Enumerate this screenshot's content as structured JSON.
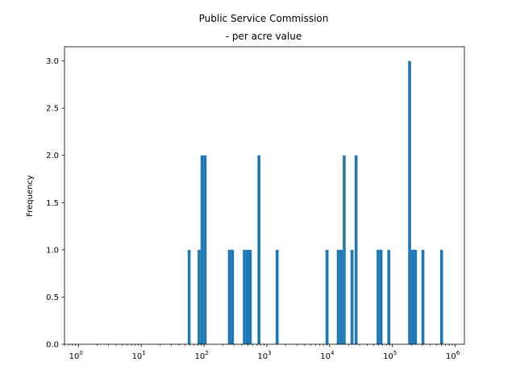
{
  "chart_data": {
    "type": "bar",
    "title_lines": [
      "Public Service Commission",
      "- per acre value"
    ],
    "xlabel": "",
    "ylabel": "Frequency",
    "x_scale": "log",
    "xlim": [
      0.6,
      1400000
    ],
    "ylim": [
      0,
      3.15
    ],
    "grid": false,
    "legend": "none",
    "bar_color": "#1f77b4",
    "y_ticks": [
      {
        "value": 0.0,
        "label": "0.0"
      },
      {
        "value": 0.5,
        "label": "0.5"
      },
      {
        "value": 1.0,
        "label": "1.0"
      },
      {
        "value": 1.5,
        "label": "1.5"
      },
      {
        "value": 2.0,
        "label": "2.0"
      },
      {
        "value": 2.5,
        "label": "2.5"
      },
      {
        "value": 3.0,
        "label": "3.0"
      }
    ],
    "x_ticks": [
      {
        "value": 1,
        "base": "10",
        "exp": "0"
      },
      {
        "value": 10,
        "base": "10",
        "exp": "1"
      },
      {
        "value": 100,
        "base": "10",
        "exp": "2"
      },
      {
        "value": 1000,
        "base": "10",
        "exp": "3"
      },
      {
        "value": 10000,
        "base": "10",
        "exp": "4"
      },
      {
        "value": 100000,
        "base": "10",
        "exp": "5"
      },
      {
        "value": 1000000,
        "base": "10",
        "exp": "6"
      }
    ],
    "bins": [
      {
        "x0": 55,
        "x1": 61,
        "count": 1
      },
      {
        "x0": 79,
        "x1": 88,
        "count": 1
      },
      {
        "x0": 88,
        "x1": 98,
        "count": 2
      },
      {
        "x0": 98,
        "x1": 110,
        "count": 2
      },
      {
        "x0": 240,
        "x1": 268,
        "count": 1
      },
      {
        "x0": 268,
        "x1": 300,
        "count": 1
      },
      {
        "x0": 415,
        "x1": 462,
        "count": 1
      },
      {
        "x0": 462,
        "x1": 515,
        "count": 1
      },
      {
        "x0": 515,
        "x1": 575,
        "count": 1
      },
      {
        "x0": 710,
        "x1": 790,
        "count": 2
      },
      {
        "x0": 1380,
        "x1": 1540,
        "count": 1
      },
      {
        "x0": 8600,
        "x1": 9600,
        "count": 1
      },
      {
        "x0": 13000,
        "x1": 14500,
        "count": 1
      },
      {
        "x0": 14500,
        "x1": 16200,
        "count": 1
      },
      {
        "x0": 16200,
        "x1": 18000,
        "count": 2
      },
      {
        "x0": 21500,
        "x1": 24000,
        "count": 1
      },
      {
        "x0": 25000,
        "x1": 27800,
        "count": 2
      },
      {
        "x0": 56000,
        "x1": 62500,
        "count": 1
      },
      {
        "x0": 62500,
        "x1": 69500,
        "count": 1
      },
      {
        "x0": 83000,
        "x1": 92500,
        "count": 1
      },
      {
        "x0": 178000,
        "x1": 198000,
        "count": 3
      },
      {
        "x0": 198000,
        "x1": 221000,
        "count": 1
      },
      {
        "x0": 221000,
        "x1": 246000,
        "count": 1
      },
      {
        "x0": 290000,
        "x1": 323000,
        "count": 1
      },
      {
        "x0": 575000,
        "x1": 640000,
        "count": 1
      }
    ]
  }
}
